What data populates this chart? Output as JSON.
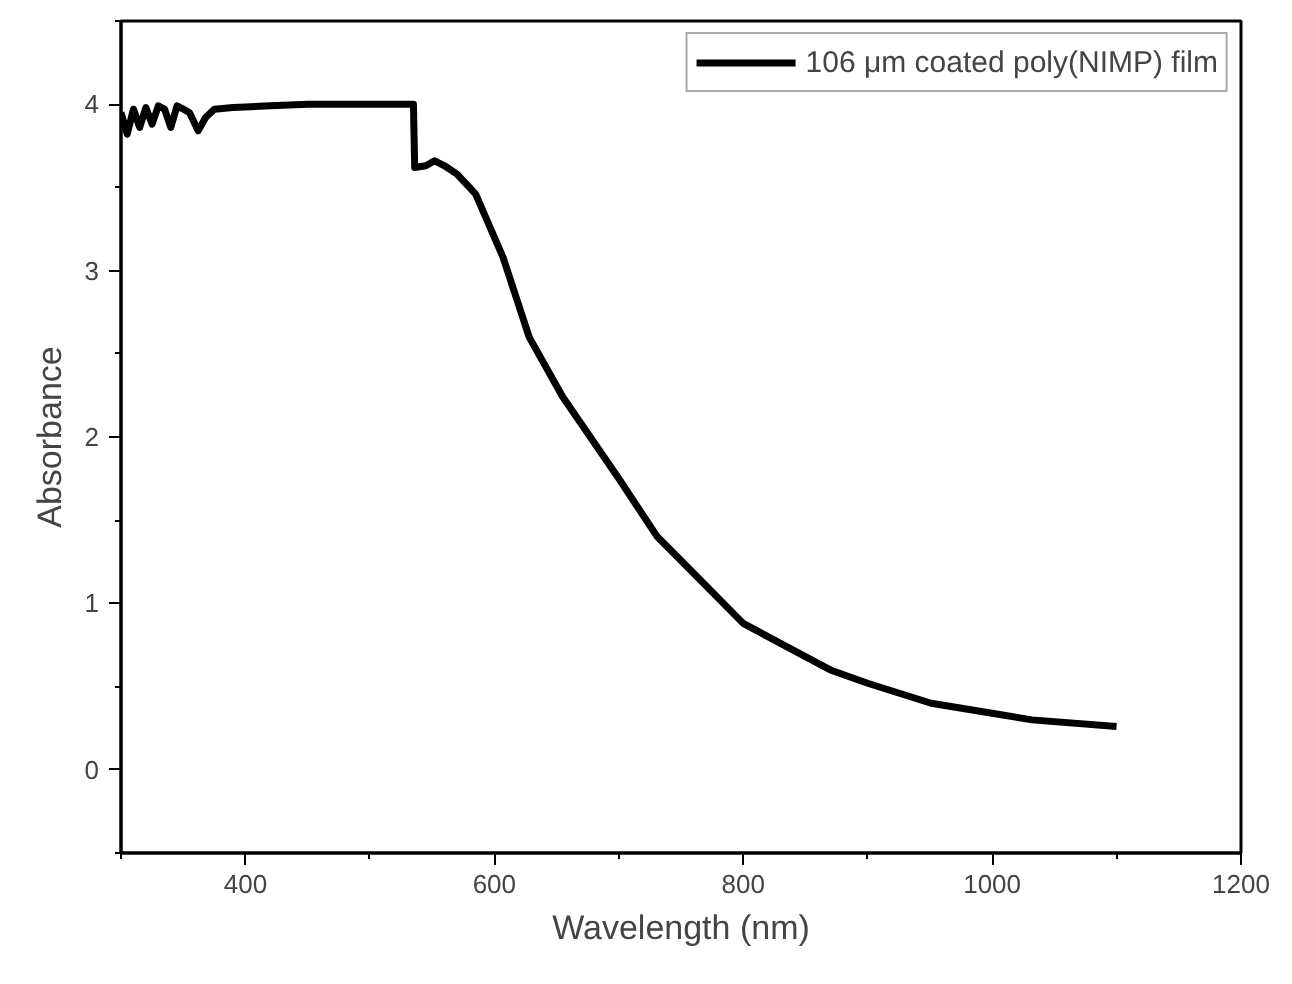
{
  "chart_data": {
    "type": "line",
    "xlabel": "Wavelength (nm)",
    "ylabel": "Absorbance",
    "xlim": [
      300,
      1200
    ],
    "ylim": [
      -0.5,
      4.5
    ],
    "xticks": [
      400,
      600,
      800,
      1000,
      1200
    ],
    "yticks": [
      0,
      1,
      2,
      3,
      4
    ],
    "legend": "top right",
    "grid": false,
    "marker": "none",
    "line_style": "solid",
    "series": [
      {
        "name": "106 μm coated poly(NIMP) film",
        "color": "#000000",
        "x": [
          300,
          305,
          310,
          315,
          320,
          325,
          330,
          335,
          340,
          345,
          350,
          355,
          362,
          368,
          375,
          390,
          420,
          450,
          535,
          536,
          545,
          552,
          560,
          570,
          580,
          585,
          607,
          628,
          655,
          700,
          731,
          747,
          800,
          870,
          900,
          951,
          1000,
          1032,
          1100
        ],
        "values": [
          3.95,
          3.82,
          3.97,
          3.86,
          3.98,
          3.88,
          3.99,
          3.97,
          3.86,
          3.99,
          3.97,
          3.95,
          3.84,
          3.92,
          3.97,
          3.98,
          3.99,
          4.0,
          4.0,
          3.62,
          3.63,
          3.66,
          3.63,
          3.58,
          3.5,
          3.46,
          3.08,
          2.6,
          2.24,
          1.75,
          1.4,
          1.28,
          0.88,
          0.6,
          0.52,
          0.4,
          0.34,
          0.3,
          0.26
        ]
      }
    ]
  }
}
